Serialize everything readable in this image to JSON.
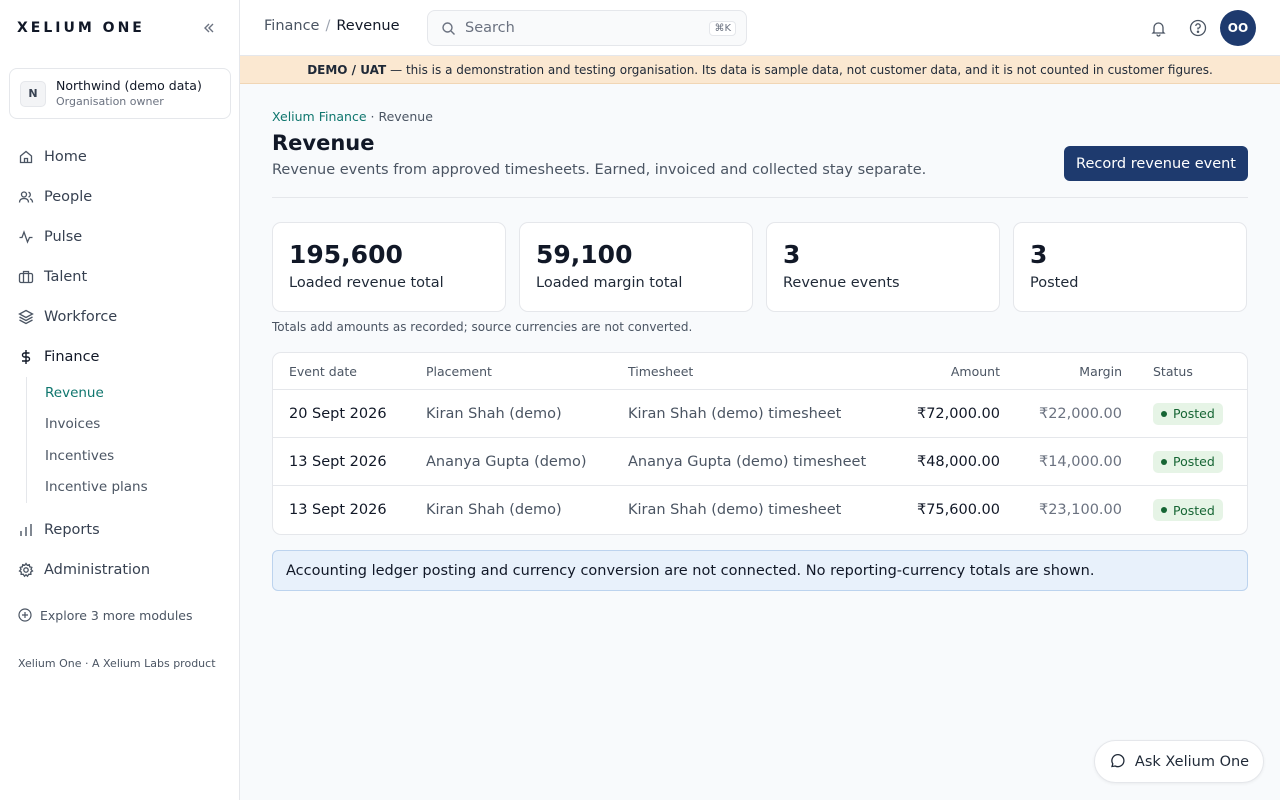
{
  "sidebar": {
    "brand": "XELIUM ONE",
    "org": {
      "initial": "N",
      "name": "Northwind (demo data)",
      "role": "Organisation owner"
    },
    "nav": [
      {
        "label": "Home",
        "icon": "home-icon"
      },
      {
        "label": "People",
        "icon": "users-icon"
      },
      {
        "label": "Pulse",
        "icon": "activity-icon"
      },
      {
        "label": "Talent",
        "icon": "briefcase-icon"
      },
      {
        "label": "Workforce",
        "icon": "layers-icon"
      },
      {
        "label": "Finance",
        "icon": "dollar-icon"
      }
    ],
    "finance_sub": [
      {
        "label": "Revenue"
      },
      {
        "label": "Invoices"
      },
      {
        "label": "Incentives"
      },
      {
        "label": "Incentive plans"
      }
    ],
    "nav_bottom": [
      {
        "label": "Reports",
        "icon": "bar-chart-icon"
      },
      {
        "label": "Administration",
        "icon": "gear-icon"
      }
    ],
    "explore": "Explore 3 more modules",
    "footer": "Xelium One · A Xelium Labs product"
  },
  "topbar": {
    "crumb_parent": "Finance",
    "crumb_sep": "/",
    "crumb_current": "Revenue",
    "search_placeholder": "Search",
    "search_shortcut": "⌘K",
    "avatar_initials": "OO"
  },
  "banner": {
    "bold": "DEMO / UAT",
    "text": "— this is a demonstration and testing organisation. Its data is sample data, not customer data, and it is not counted in customer figures."
  },
  "page": {
    "crumb_link": "Xelium Finance",
    "crumb_sep": " · ",
    "crumb_current": "Revenue",
    "title": "Revenue",
    "subtitle": "Revenue events from approved timesheets. Earned, invoiced and collected stay separate.",
    "primary_action": "Record revenue event"
  },
  "stats": [
    {
      "value": "195,600",
      "label": "Loaded revenue total"
    },
    {
      "value": "59,100",
      "label": "Loaded margin total"
    },
    {
      "value": "3",
      "label": "Revenue events"
    },
    {
      "value": "3",
      "label": "Posted"
    }
  ],
  "totals_note": "Totals add amounts as recorded; source currencies are not converted.",
  "table": {
    "headers": [
      "Event date",
      "Placement",
      "Timesheet",
      "Amount",
      "Margin",
      "Status"
    ],
    "rows": [
      {
        "date": "20 Sept 2026",
        "placement": "Kiran Shah (demo)",
        "timesheet": "Kiran Shah (demo) timesheet",
        "amount": "₹72,000.00",
        "margin": "₹22,000.00",
        "status": "Posted"
      },
      {
        "date": "13 Sept 2026",
        "placement": "Ananya Gupta (demo)",
        "timesheet": "Ananya Gupta (demo) timesheet",
        "amount": "₹48,000.00",
        "margin": "₹14,000.00",
        "status": "Posted"
      },
      {
        "date": "13 Sept 2026",
        "placement": "Kiran Shah (demo)",
        "timesheet": "Kiran Shah (demo) timesheet",
        "amount": "₹75,600.00",
        "margin": "₹23,100.00",
        "status": "Posted"
      }
    ]
  },
  "info_note": "Accounting ledger posting and currency conversion are not connected. No reporting-currency totals are shown.",
  "assistant_button": "Ask Xelium One",
  "colors": {
    "accent": "#1e3a6e",
    "link": "#0f766e",
    "banner_bg": "#fbe8d1",
    "info_bg": "#e8f1fb",
    "posted_bg": "#e6f4e6",
    "posted_text": "#166534"
  }
}
